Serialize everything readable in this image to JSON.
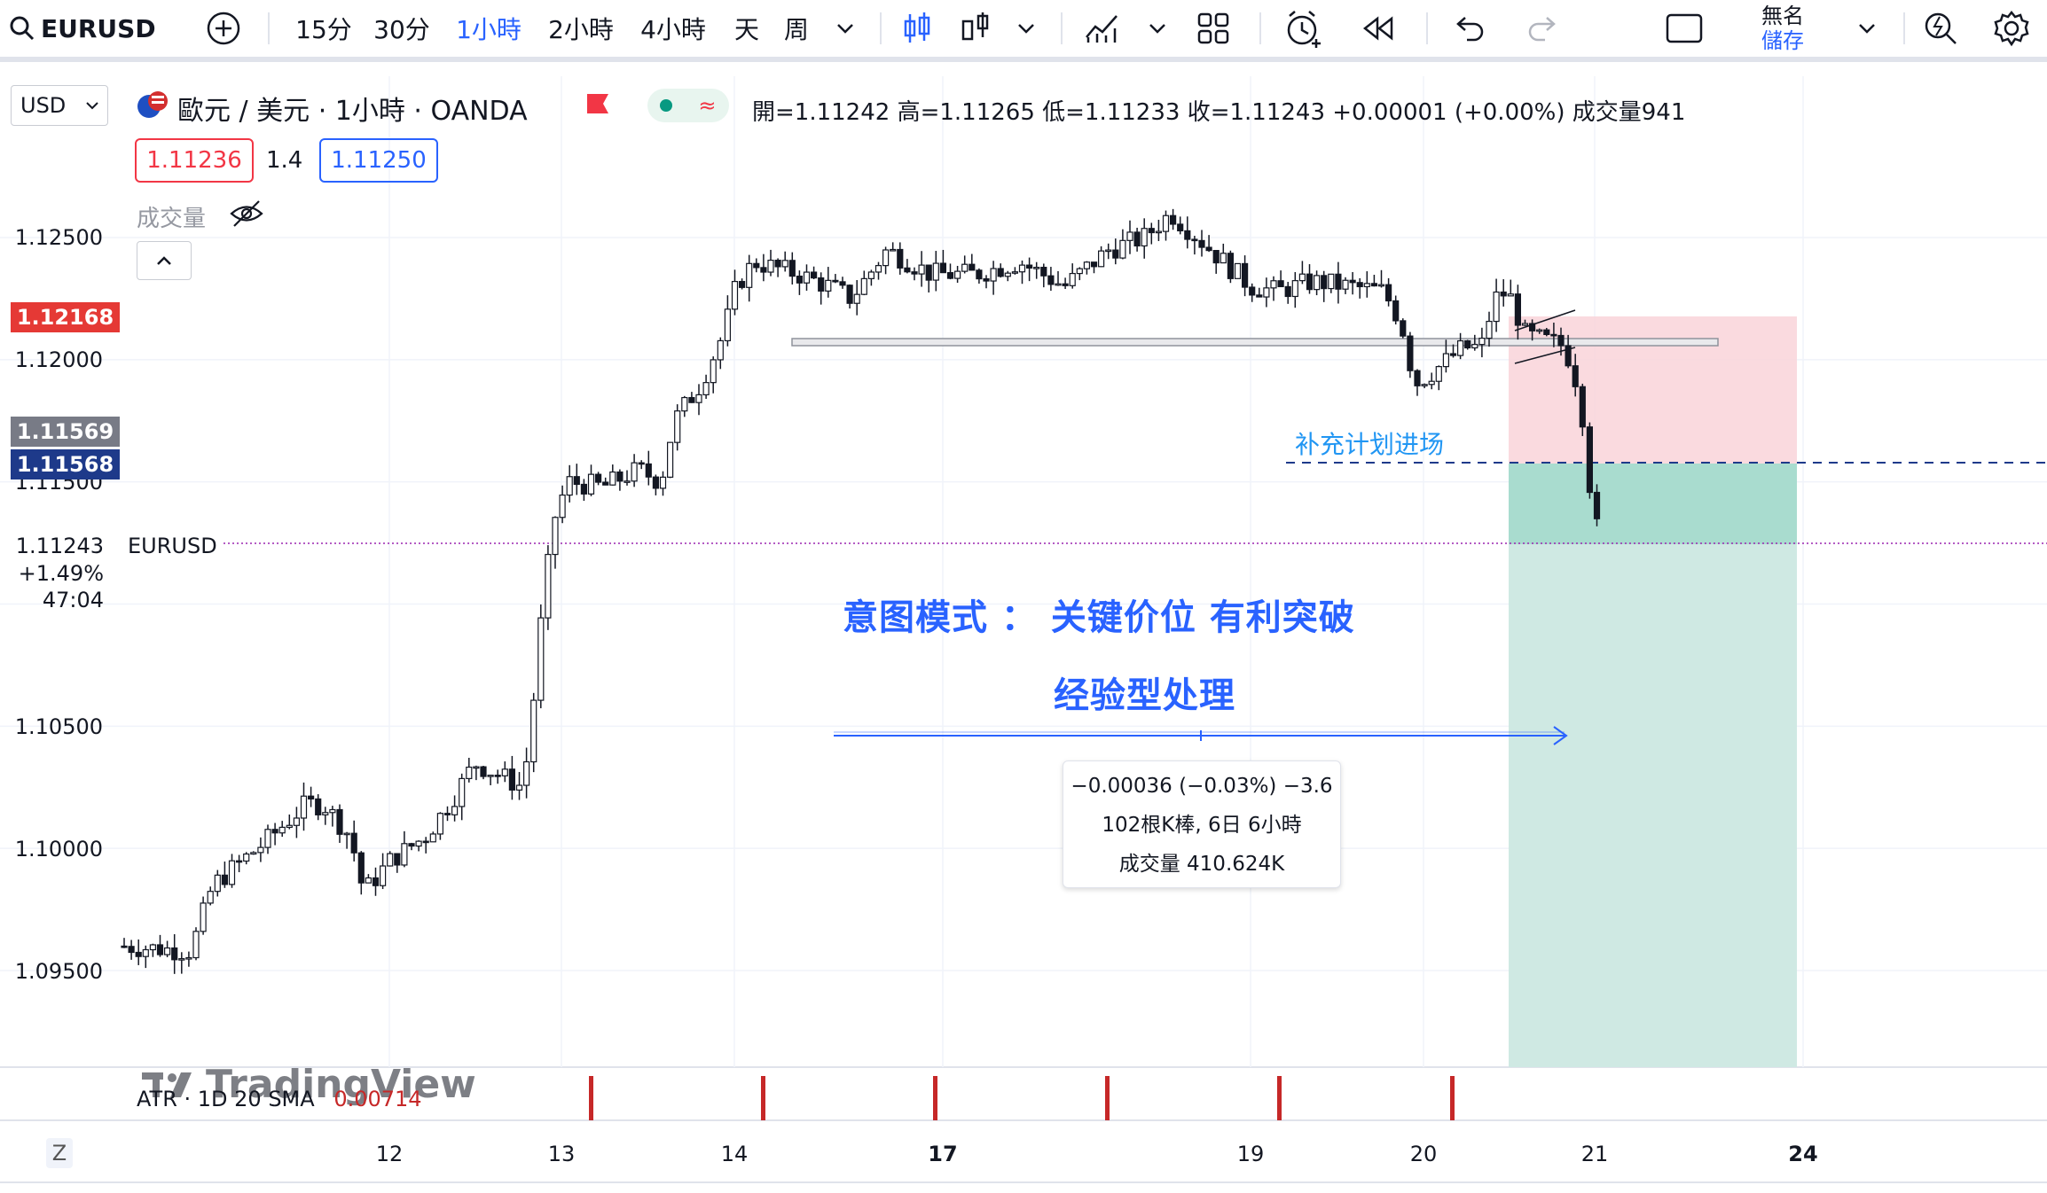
{
  "toolbar": {
    "symbol": "EURUSD",
    "intervals": [
      "15分",
      "30分",
      "1小時",
      "2小時",
      "4小時",
      "天",
      "周"
    ],
    "active_interval": "1小時",
    "layout_name_line1": "無名",
    "layout_name_line2": "儲存"
  },
  "currency_select": "USD",
  "legend": {
    "title": "歐元 / 美元 · 1小時 · OANDA",
    "ohlc": "開=1.11242 高=1.11265 低=1.11233 收=1.11243 +0.00001 (+0.00%) 成交量941",
    "bid": "1.11236",
    "spread": "1.4",
    "ask": "1.11250",
    "volume_label": "成交量"
  },
  "price_axis": {
    "labels": [
      "1.12500",
      "1.12000",
      "1.11500",
      "1.10500",
      "1.10000",
      "1.09500"
    ],
    "tag_red": "1.12168",
    "tag_gray": "1.11569",
    "tag_blue": "1.11568",
    "current_price": "1.11243",
    "current_change": "+1.49%",
    "countdown": "47:04",
    "current_symbol": "EURUSD"
  },
  "time_axis": [
    "12",
    "13",
    "14",
    "17",
    "19",
    "20",
    "21",
    "24"
  ],
  "annotations": {
    "plan_entry": "补充计划进场",
    "intent_line1": "意图模式 ： 关键价位 有利突破",
    "intent_line2": "经验型处理"
  },
  "measure_box": {
    "line1": "−0.00036 (−0.03%) −3.6",
    "line2": "102根K棒, 6日 6小時",
    "line3": "成交量 410.624K"
  },
  "indicator": {
    "label": "ATR · 1D 20 SMA",
    "value": "0.00714"
  },
  "watermark": "TradingView",
  "colors": {
    "accent": "#2962ff",
    "down": "#131722",
    "stop_zone": "#f7c9d0",
    "target_zone": "#a8dbcf",
    "red_tag": "#e53935",
    "blue_tag": "#1e3a8a"
  }
}
